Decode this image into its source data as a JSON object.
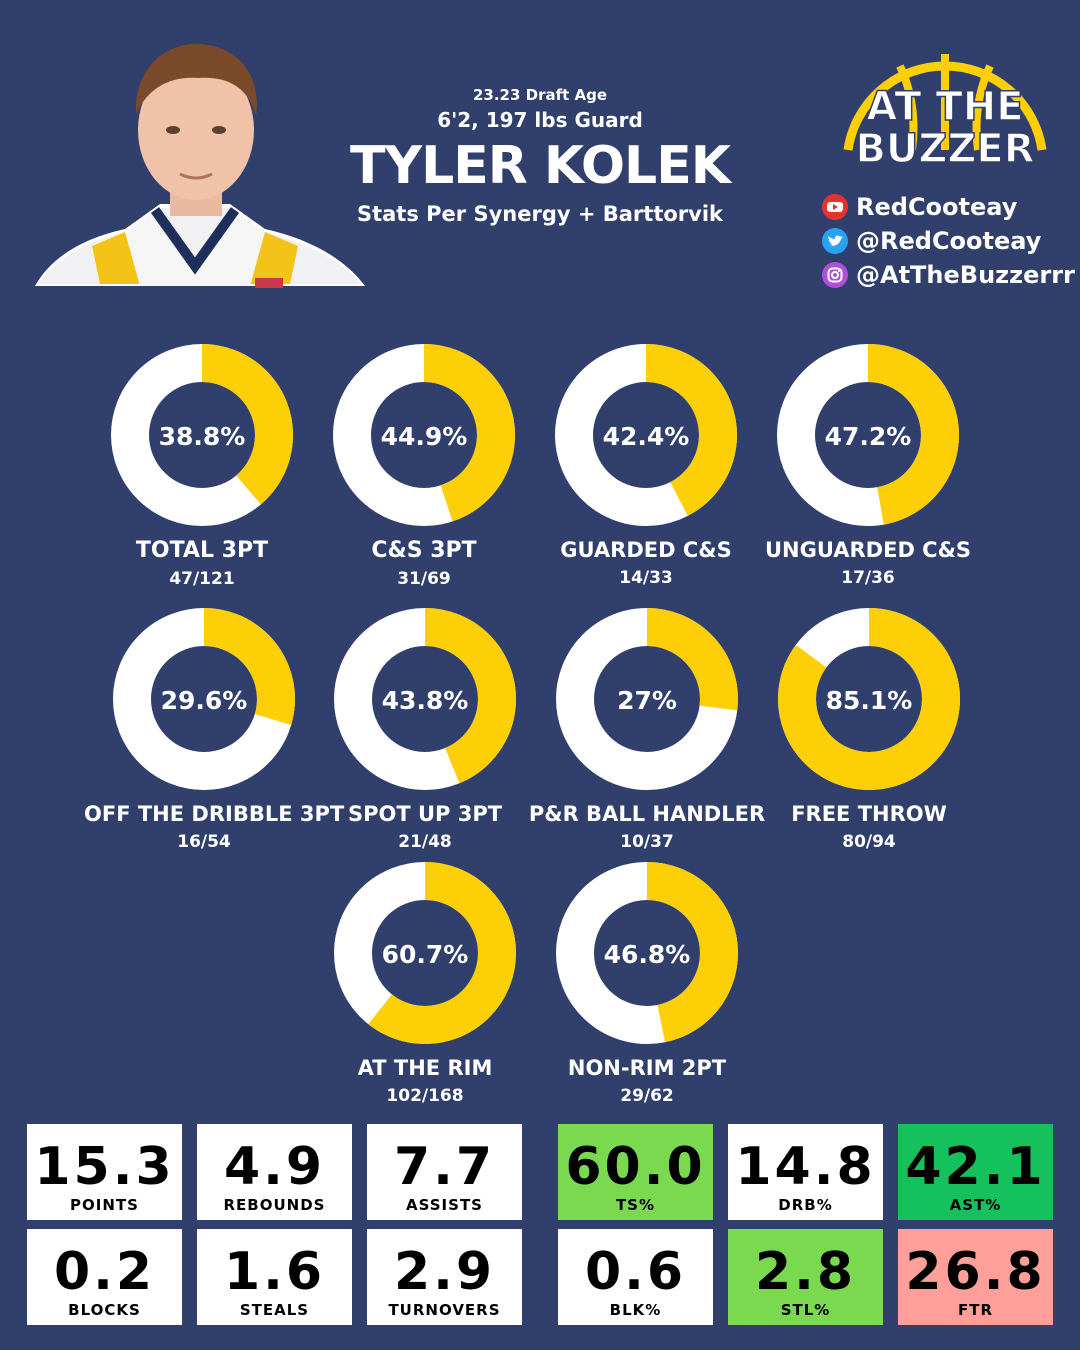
{
  "header": {
    "draft_age": "23.23 Draft Age",
    "height_weight": "6'2, 197 lbs Guard",
    "player_name": "TYLER KOLEK",
    "source": "Stats Per Synergy + Barttorvik"
  },
  "logo": {
    "line1": "AT THE",
    "line2": "BUZZER"
  },
  "socials": [
    {
      "icon": "youtube-icon",
      "handle": "RedCooteay"
    },
    {
      "icon": "twitter-icon",
      "handle": "@RedCooteay"
    },
    {
      "icon": "instagram-icon",
      "handle": "@AtTheBuzzerrr"
    }
  ],
  "colors": {
    "background": "#313f6d",
    "donut_fill": "#fccf06",
    "donut_track": "#ffffff",
    "green_light": "#7bd94f",
    "green_dark": "#15c15d",
    "red_light": "#ff9f9a"
  },
  "chart_data": {
    "type": "pie",
    "charts": [
      {
        "name": "TOTAL 3PT",
        "pct": 38.8,
        "value_label": "38.8%",
        "made_attempts": "47/121"
      },
      {
        "name": "C&S 3PT",
        "pct": 44.9,
        "value_label": "44.9%",
        "made_attempts": "31/69"
      },
      {
        "name": "GUARDED C&S",
        "pct": 42.4,
        "value_label": "42.4%",
        "made_attempts": "14/33"
      },
      {
        "name": "UNGUARDED C&S",
        "pct": 47.2,
        "value_label": "47.2%",
        "made_attempts": "17/36"
      },
      {
        "name": "OFF THE DRIBBLE 3PT",
        "pct": 29.6,
        "value_label": "29.6%",
        "made_attempts": "16/54"
      },
      {
        "name": "SPOT UP 3PT",
        "pct": 43.8,
        "value_label": "43.8%",
        "made_attempts": "21/48"
      },
      {
        "name": "P&R BALL HANDLER",
        "pct": 27,
        "value_label": "27%",
        "made_attempts": "10/37"
      },
      {
        "name": "FREE THROW",
        "pct": 85.1,
        "value_label": "85.1%",
        "made_attempts": "80/94"
      },
      {
        "name": "AT THE RIM",
        "pct": 60.7,
        "value_label": "60.7%",
        "made_attempts": "102/168"
      },
      {
        "name": "NON-RIM 2PT",
        "pct": 46.8,
        "value_label": "46.8%",
        "made_attempts": "29/62"
      }
    ]
  },
  "stats": [
    {
      "value": "15.3",
      "label": "POINTS",
      "color": "#ffffff"
    },
    {
      "value": "4.9",
      "label": "REBOUNDS",
      "color": "#ffffff"
    },
    {
      "value": "7.7",
      "label": "ASSISTS",
      "color": "#ffffff"
    },
    {
      "value": "60.0",
      "label": "TS%",
      "color": "#7bd94f"
    },
    {
      "value": "14.8",
      "label": "DRB%",
      "color": "#ffffff"
    },
    {
      "value": "42.1",
      "label": "AST%",
      "color": "#15c15d"
    },
    {
      "value": "0.2",
      "label": "BLOCKS",
      "color": "#ffffff"
    },
    {
      "value": "1.6",
      "label": "STEALS",
      "color": "#ffffff"
    },
    {
      "value": "2.9",
      "label": "TURNOVERS",
      "color": "#ffffff"
    },
    {
      "value": "0.6",
      "label": "BLK%",
      "color": "#ffffff"
    },
    {
      "value": "2.8",
      "label": "STL%",
      "color": "#7bd94f"
    },
    {
      "value": "26.8",
      "label": "FTR",
      "color": "#ff9f9a"
    }
  ]
}
